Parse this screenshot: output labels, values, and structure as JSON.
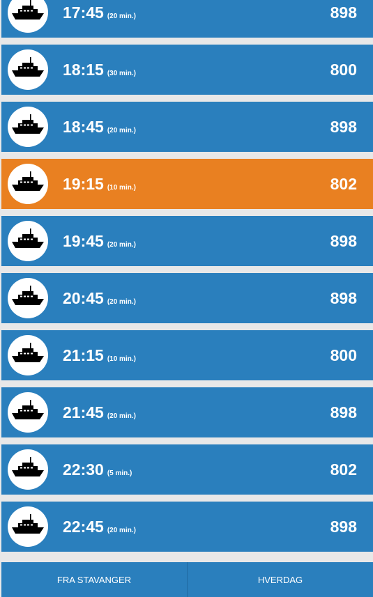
{
  "colors": {
    "row_default": "#2a7fbd",
    "row_highlight": "#e98021",
    "text": "#ffffff",
    "background": "#e8e8e8"
  },
  "departures": [
    {
      "time": "17:45",
      "duration": "(20 min.)",
      "number": "898",
      "icon": "ferry-icon",
      "highlight": false
    },
    {
      "time": "18:15",
      "duration": "(30 min.)",
      "number": "800",
      "icon": "ferry-icon",
      "highlight": false
    },
    {
      "time": "18:45",
      "duration": "(20 min.)",
      "number": "898",
      "icon": "ferry-icon",
      "highlight": false
    },
    {
      "time": "19:15",
      "duration": "(10 min.)",
      "number": "802",
      "icon": "ferry-icon",
      "highlight": true
    },
    {
      "time": "19:45",
      "duration": "(20 min.)",
      "number": "898",
      "icon": "ferry-icon",
      "highlight": false
    },
    {
      "time": "20:45",
      "duration": "(20 min.)",
      "number": "898",
      "icon": "ferry-icon",
      "highlight": false
    },
    {
      "time": "21:15",
      "duration": "(10 min.)",
      "number": "800",
      "icon": "ferry-icon",
      "highlight": false
    },
    {
      "time": "21:45",
      "duration": "(20 min.)",
      "number": "898",
      "icon": "ferry-icon",
      "highlight": false
    },
    {
      "time": "22:30",
      "duration": "(5 min.)",
      "number": "802",
      "icon": "ferry-icon",
      "highlight": false
    },
    {
      "time": "22:45",
      "duration": "(20 min.)",
      "number": "898",
      "icon": "ferry-icon",
      "highlight": false
    }
  ],
  "tabs": [
    {
      "label": "FRA STAVANGER"
    },
    {
      "label": "HVERDAG"
    }
  ]
}
